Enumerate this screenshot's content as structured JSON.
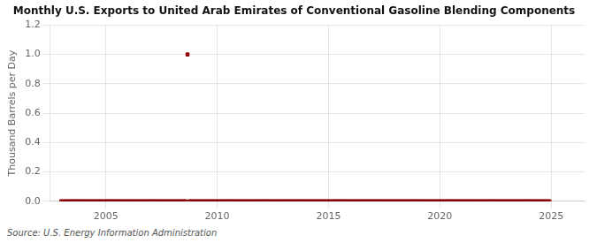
{
  "chart_data": {
    "type": "scatter",
    "title": "Monthly U.S. Exports to United Arab Emirates of Conventional Gasoline Blending Components",
    "y_label": "Thousand Barrels per Day",
    "annotations": [
      "Source: U.S. Energy Information Administration"
    ],
    "x": [
      2003.0,
      2003.08,
      2003.17,
      2003.25,
      2003.33,
      2003.42,
      2003.5,
      2003.58,
      2003.67,
      2003.75,
      2003.83,
      2003.92,
      2004.0,
      2004.08,
      2004.17,
      2004.25,
      2004.33,
      2004.42,
      2004.5,
      2004.58,
      2004.67,
      2004.75,
      2004.83,
      2004.92,
      2005.0,
      2005.08,
      2005.17,
      2005.25,
      2005.33,
      2005.42,
      2005.5,
      2005.58,
      2005.67,
      2005.75,
      2005.83,
      2005.92,
      2006.0,
      2006.08,
      2006.17,
      2006.25,
      2006.33,
      2006.42,
      2006.5,
      2006.58,
      2006.67,
      2006.75,
      2006.83,
      2006.92,
      2007.0,
      2007.08,
      2007.17,
      2007.25,
      2007.33,
      2007.42,
      2007.5,
      2007.58,
      2007.67,
      2007.75,
      2007.83,
      2007.92,
      2008.0,
      2008.08,
      2008.17,
      2008.25,
      2008.33,
      2008.42,
      2008.5,
      2008.58,
      2008.67,
      2008.75,
      2008.83,
      2008.92,
      2009.0,
      2009.08,
      2009.17,
      2009.25,
      2009.33,
      2009.42,
      2009.5,
      2009.58,
      2009.67,
      2009.75,
      2009.83,
      2009.92,
      2010.0,
      2010.08,
      2010.17,
      2010.25,
      2010.33,
      2010.42,
      2010.5,
      2010.58,
      2010.67,
      2010.75,
      2010.83,
      2010.92,
      2011.0,
      2011.08,
      2011.17,
      2011.25,
      2011.33,
      2011.42,
      2011.5,
      2011.58,
      2011.67,
      2011.75,
      2011.83,
      2011.92,
      2012.0,
      2012.08,
      2012.17,
      2012.25,
      2012.33,
      2012.42,
      2012.5,
      2012.58,
      2012.67,
      2012.75,
      2012.83,
      2012.92,
      2013.0,
      2013.08,
      2013.17,
      2013.25,
      2013.33,
      2013.42,
      2013.5,
      2013.58,
      2013.67,
      2013.75,
      2013.83,
      2013.92,
      2014.0,
      2014.08,
      2014.17,
      2014.25,
      2014.33,
      2014.42,
      2014.5,
      2014.58,
      2014.67,
      2014.75,
      2014.83,
      2014.92,
      2015.0,
      2015.08,
      2015.17,
      2015.25,
      2015.33,
      2015.42,
      2015.5,
      2015.58,
      2015.67,
      2015.75,
      2015.83,
      2015.92,
      2016.0,
      2016.08,
      2016.17,
      2016.25,
      2016.33,
      2016.42,
      2016.5,
      2016.58,
      2016.67,
      2016.75,
      2016.83,
      2016.92,
      2017.0,
      2017.08,
      2017.17,
      2017.25,
      2017.33,
      2017.42,
      2017.5,
      2017.58,
      2017.67,
      2017.75,
      2017.83,
      2017.92,
      2018.0,
      2018.08,
      2018.17,
      2018.25,
      2018.33,
      2018.42,
      2018.5,
      2018.58,
      2018.67,
      2018.75,
      2018.83,
      2018.92,
      2019.0,
      2019.08,
      2019.17,
      2019.25,
      2019.33,
      2019.42,
      2019.5,
      2019.58,
      2019.67,
      2019.75,
      2019.83,
      2019.92,
      2020.0,
      2020.08,
      2020.17,
      2020.25,
      2020.33,
      2020.42,
      2020.5,
      2020.58,
      2020.67,
      2020.75,
      2020.83,
      2020.92,
      2021.0,
      2021.08,
      2021.17,
      2021.25,
      2021.33,
      2021.42,
      2021.5,
      2021.58,
      2021.67,
      2021.75,
      2021.83,
      2021.92,
      2022.0,
      2022.08,
      2022.17,
      2022.25,
      2022.33,
      2022.42,
      2022.5,
      2022.58,
      2022.67,
      2022.75,
      2022.83,
      2022.92,
      2023.0,
      2023.08,
      2023.17,
      2023.25,
      2023.33,
      2023.42,
      2023.5,
      2023.58,
      2023.67,
      2023.75,
      2023.83,
      2023.92,
      2024.0,
      2024.08,
      2024.17,
      2024.25,
      2024.33,
      2024.42,
      2024.5,
      2024.58,
      2024.67,
      2024.75,
      2024.83,
      2024.92
    ],
    "series": [
      {
        "color": "#8b0000",
        "marker": "square",
        "values": [
          0.0,
          0.0,
          0.0,
          0.0,
          0.0,
          0.0,
          0.0,
          0.0,
          0.0,
          0.0,
          0.0,
          0.0,
          0.0,
          0.0,
          0.0,
          0.0,
          0.0,
          0.0,
          0.0,
          0.0,
          0.0,
          0.0,
          0.0,
          0.0,
          0.0,
          0.0,
          0.0,
          0.0,
          0.0,
          0.0,
          0.0,
          0.0,
          0.0,
          0.0,
          0.0,
          0.0,
          0.0,
          0.0,
          0.0,
          0.0,
          0.0,
          0.0,
          0.0,
          0.0,
          0.0,
          0.0,
          0.0,
          0.0,
          0.0,
          0.0,
          0.0,
          0.0,
          0.0,
          0.0,
          0.0,
          0.0,
          0.0,
          0.0,
          0.0,
          0.0,
          0.0,
          0.0,
          0.0,
          0.0,
          0.0,
          0.0,
          0.0,
          0.0,
          1.0,
          0.0,
          0.0,
          0.0,
          0.0,
          0.0,
          0.0,
          0.0,
          0.0,
          0.0,
          0.0,
          0.0,
          0.0,
          0.0,
          0.0,
          0.0,
          0.0,
          0.0,
          0.0,
          0.0,
          0.0,
          0.0,
          0.0,
          0.0,
          0.0,
          0.0,
          0.0,
          0.0,
          0.0,
          0.0,
          0.0,
          0.0,
          0.0,
          0.0,
          0.0,
          0.0,
          0.0,
          0.0,
          0.0,
          0.0,
          0.0,
          0.0,
          0.0,
          0.0,
          0.0,
          0.0,
          0.0,
          0.0,
          0.0,
          0.0,
          0.0,
          0.0,
          0.0,
          0.0,
          0.0,
          0.0,
          0.0,
          0.0,
          0.0,
          0.0,
          0.0,
          0.0,
          0.0,
          0.0,
          0.0,
          0.0,
          0.0,
          0.0,
          0.0,
          0.0,
          0.0,
          0.0,
          0.0,
          0.0,
          0.0,
          0.0,
          0.0,
          0.0,
          0.0,
          0.0,
          0.0,
          0.0,
          0.0,
          0.0,
          0.0,
          0.0,
          0.0,
          0.0,
          0.0,
          0.0,
          0.0,
          0.0,
          0.0,
          0.0,
          0.0,
          0.0,
          0.0,
          0.0,
          0.0,
          0.0,
          0.0,
          0.0,
          0.0,
          0.0,
          0.0,
          0.0,
          0.0,
          0.0,
          0.0,
          0.0,
          0.0,
          0.0,
          0.0,
          0.0,
          0.0,
          0.0,
          0.0,
          0.0,
          0.0,
          0.0,
          0.0,
          0.0,
          0.0,
          0.0,
          0.0,
          0.0,
          0.0,
          0.0,
          0.0,
          0.0,
          0.0,
          0.0,
          0.0,
          0.0,
          0.0,
          0.0,
          0.0,
          0.0,
          0.0,
          0.0,
          0.0,
          0.0,
          0.0,
          0.0,
          0.0,
          0.0,
          0.0,
          0.0,
          0.0,
          0.0,
          0.0,
          0.0,
          0.0,
          0.0,
          0.0,
          0.0,
          0.0,
          0.0,
          0.0,
          0.0,
          0.0,
          0.0,
          0.0,
          0.0,
          0.0,
          0.0,
          0.0,
          0.0,
          0.0,
          0.0,
          0.0,
          0.0,
          0.0,
          0.0,
          0.0,
          0.0,
          0.0,
          0.0,
          0.0,
          0.0,
          0.0,
          0.0,
          0.0,
          0.0,
          0.0,
          0.0,
          0.0,
          0.0,
          0.0,
          0.0,
          0.0,
          0.0,
          0.0,
          0.0,
          0.0,
          0.0
        ]
      }
    ],
    "xlim": [
      2002.5,
      2026.5
    ],
    "xticks": [
      2005,
      2010,
      2015,
      2020,
      2025
    ],
    "ylim": [
      0.0,
      1.2
    ],
    "yticks": [
      {
        "value": 0.0,
        "label": "0.0"
      },
      0.2,
      0.4,
      0.6,
      0.8,
      {
        "value": 1.0,
        "label": "1.0"
      },
      1.2
    ],
    "grid": true
  }
}
